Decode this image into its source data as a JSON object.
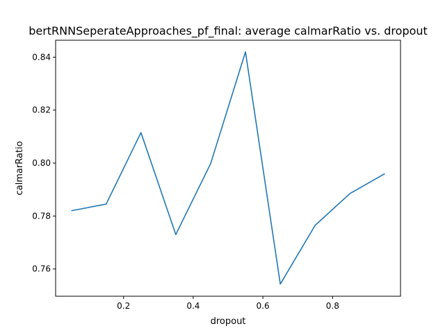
{
  "chart_data": {
    "type": "line",
    "title": "bertRNNSeperateApproaches_pf_final: average calmarRatio vs. dropout",
    "xlabel": "dropout",
    "ylabel": "calmarRatio",
    "xlim": [
      0.005,
      0.995
    ],
    "ylim": [
      0.7497,
      0.8464
    ],
    "xticks": [
      {
        "value": 0.2,
        "label": "0.2"
      },
      {
        "value": 0.4,
        "label": "0.4"
      },
      {
        "value": 0.6,
        "label": "0.6"
      },
      {
        "value": 0.8,
        "label": "0.8"
      }
    ],
    "yticks": [
      {
        "value": 0.76,
        "label": "0.76"
      },
      {
        "value": 0.78,
        "label": "0.78"
      },
      {
        "value": 0.8,
        "label": "0.80"
      },
      {
        "value": 0.82,
        "label": "0.82"
      },
      {
        "value": 0.84,
        "label": "0.84"
      }
    ],
    "grid": false,
    "series": [
      {
        "color": "#1f77b4",
        "x": [
          0.05,
          0.15,
          0.25,
          0.35,
          0.45,
          0.55,
          0.65,
          0.75,
          0.85,
          0.95
        ],
        "y": [
          0.782,
          0.7845,
          0.8115,
          0.773,
          0.7998,
          0.842,
          0.7543,
          0.7765,
          0.7885,
          0.796
        ]
      }
    ]
  }
}
